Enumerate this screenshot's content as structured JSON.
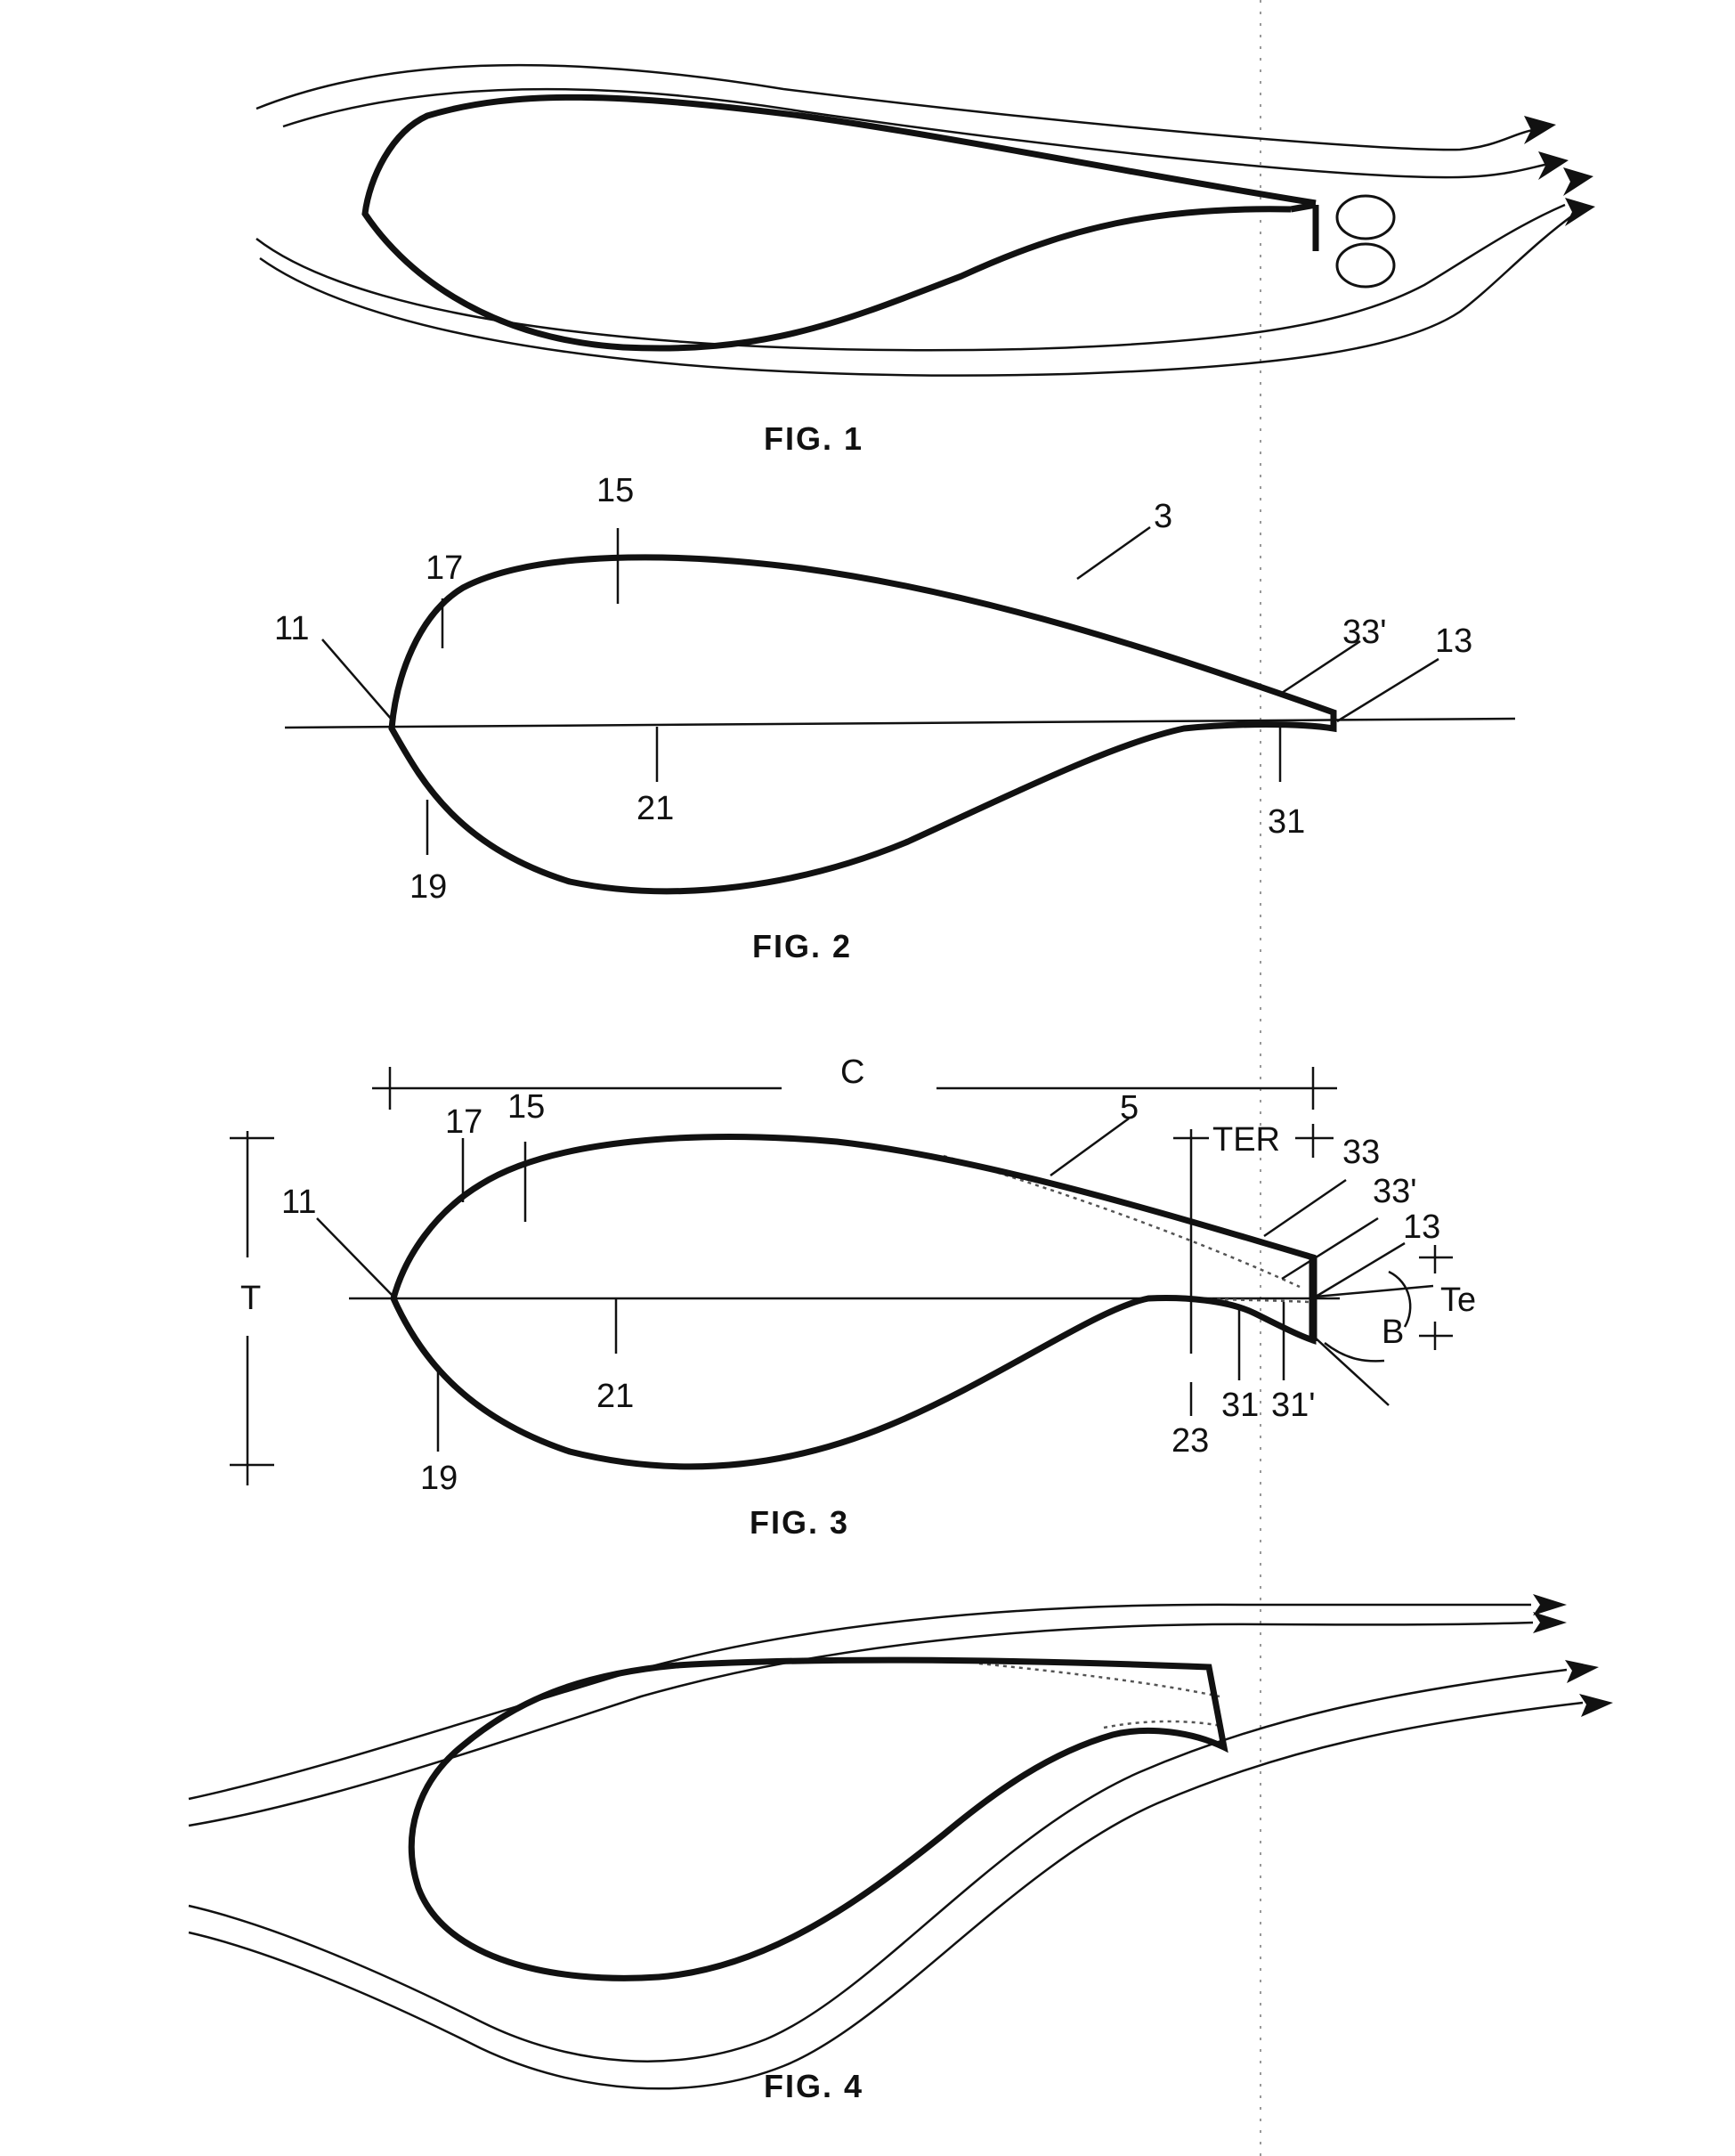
{
  "colors": {
    "ink": "#111111",
    "dotted": "#555555",
    "background": "#ffffff"
  },
  "figures": {
    "fig1": {
      "caption": "FIG. 1"
    },
    "fig2": {
      "caption": "FIG. 2",
      "labels": {
        "l15": "15",
        "l17": "17",
        "l11": "11",
        "l3": "3",
        "l33p": "33'",
        "l13": "13",
        "l21": "21",
        "l31": "31",
        "l19": "19"
      }
    },
    "fig3": {
      "caption": "FIG. 3",
      "labels": {
        "lC": "C",
        "lT": "T",
        "l17": "17",
        "l15": "15",
        "l5": "5",
        "lTER": "TER",
        "l33": "33",
        "l33p": "33'",
        "l13": "13",
        "l11": "11",
        "lTe": "Te",
        "lB": "B",
        "l21": "21",
        "l23": "23",
        "l31": "31",
        "l31p": "31'",
        "l19": "19"
      }
    },
    "fig4": {
      "caption": "FIG. 4"
    }
  }
}
